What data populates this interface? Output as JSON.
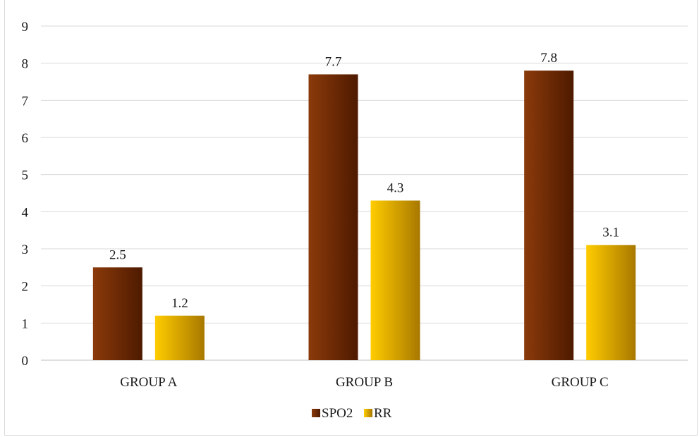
{
  "chart_data": {
    "type": "bar",
    "title": "",
    "xlabel": "",
    "ylabel": "",
    "categories": [
      "GROUP A",
      "GROUP B",
      "GROUP C"
    ],
    "series": [
      {
        "name": "SPO2",
        "values": [
          2.5,
          7.7,
          7.8
        ],
        "color_dark": "#5a1f00",
        "color_light": "#8b3a0a"
      },
      {
        "name": "RR",
        "values": [
          1.2,
          4.3,
          3.1
        ],
        "color_dark": "#b88600",
        "color_light": "#ffc800"
      }
    ],
    "ylim": [
      0,
      9
    ],
    "yticks": [
      0,
      1,
      2,
      3,
      4,
      5,
      6,
      7,
      8,
      9
    ],
    "grid": true,
    "legend_position": "bottom",
    "data_labels": true
  }
}
